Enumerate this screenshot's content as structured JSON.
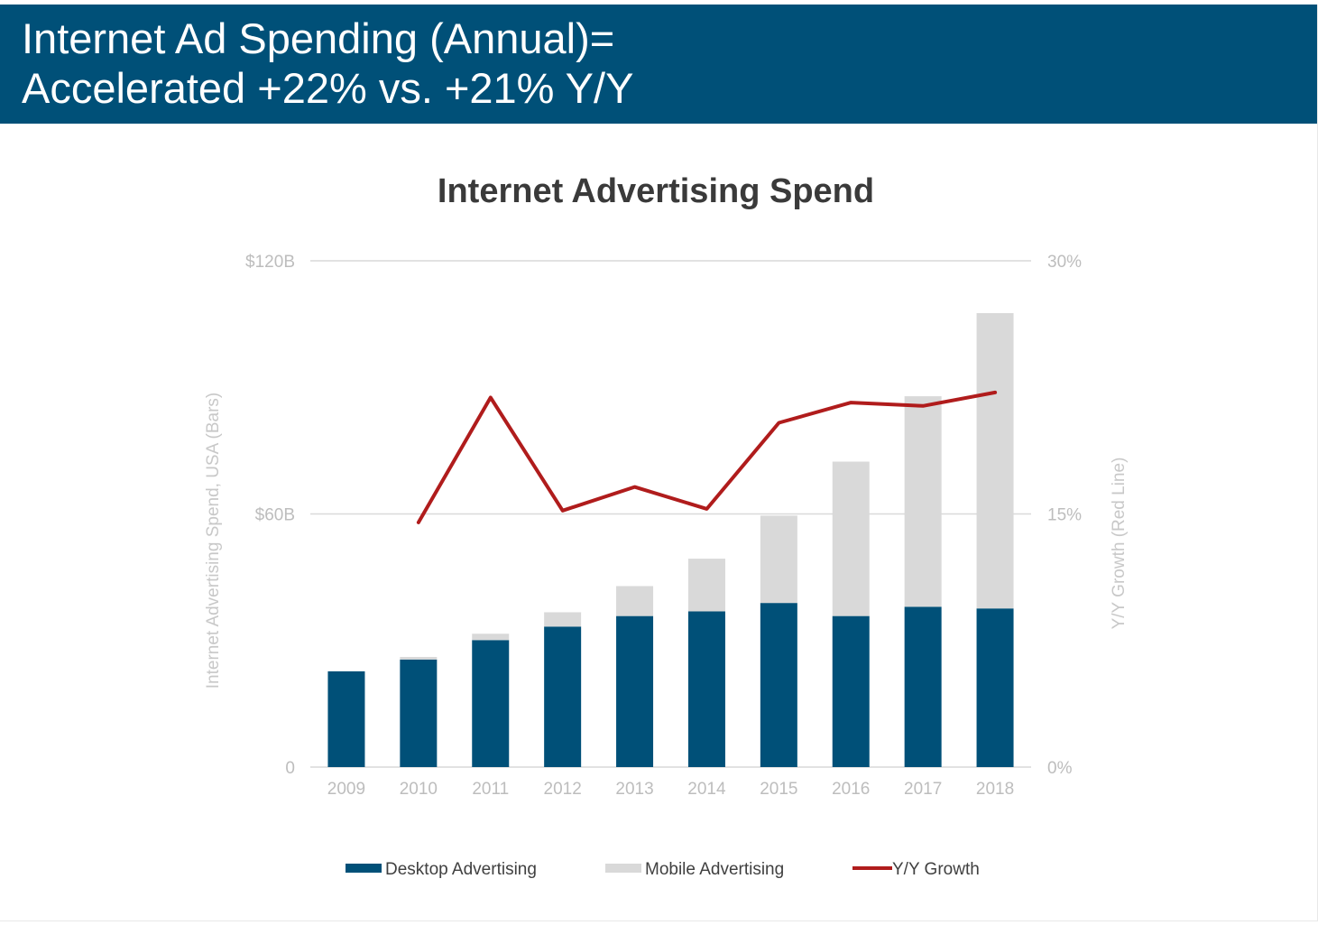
{
  "header": {
    "line1": "Internet Ad Spending (Annual)=",
    "line2": "Accelerated +22% vs. +21% Y/Y"
  },
  "colors": {
    "header_bg": "#005078",
    "desktop": "#005078",
    "mobile": "#d9d9d9",
    "growth": "#b01c1c",
    "gridline": "#d9d9d9"
  },
  "chart_data": {
    "type": "bar",
    "stacked": true,
    "title": "Internet Advertising Spend",
    "categories": [
      "2009",
      "2010",
      "2011",
      "2012",
      "2013",
      "2014",
      "2015",
      "2016",
      "2017",
      "2018"
    ],
    "series": [
      {
        "name": "Desktop Advertising",
        "type": "bar",
        "axis": "left",
        "values": [
          22.7,
          25.5,
          30.1,
          33.3,
          35.8,
          36.9,
          38.9,
          35.8,
          38.0,
          37.6
        ]
      },
      {
        "name": "Mobile Advertising",
        "type": "bar",
        "axis": "left",
        "values": [
          0.0,
          0.6,
          1.5,
          3.4,
          7.1,
          12.5,
          20.7,
          36.6,
          49.9,
          70.0
        ]
      },
      {
        "name": "Y/Y Growth",
        "type": "line",
        "axis": "right",
        "values": [
          null,
          14.5,
          21.9,
          15.2,
          16.6,
          15.3,
          20.4,
          21.6,
          21.4,
          22.2
        ]
      }
    ],
    "y_left": {
      "label": "Internet Advertising Spend, USA (Bars)",
      "lim": [
        0,
        120
      ],
      "ticks": [
        0,
        60,
        120
      ],
      "tick_labels": [
        "0",
        "$60B",
        "$120B"
      ]
    },
    "y_right": {
      "label": "Y/Y Growth (Red Line)",
      "lim": [
        0,
        30
      ],
      "ticks": [
        0,
        15,
        30
      ],
      "tick_labels": [
        "0%",
        "15%",
        "30%"
      ]
    },
    "grid": true,
    "legend": {
      "position": "bottom",
      "items": [
        "Desktop Advertising",
        "Mobile Advertising",
        "Y/Y Growth"
      ]
    }
  }
}
